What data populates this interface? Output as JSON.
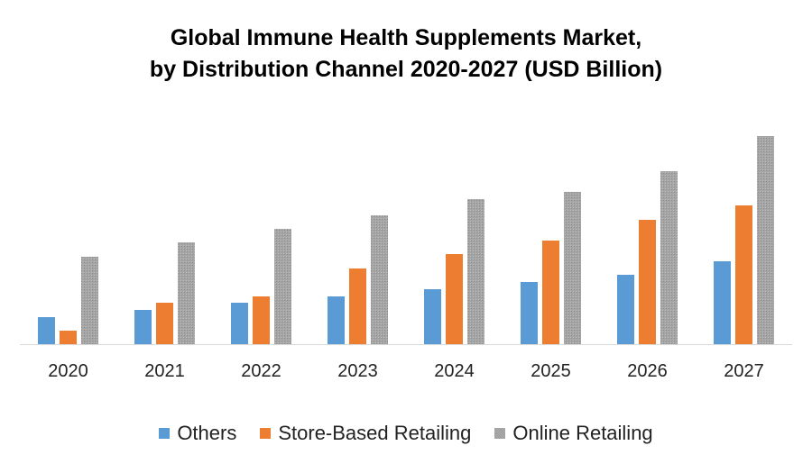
{
  "chart_data": {
    "type": "bar",
    "title": "Global Immune Health Supplements Market,",
    "subtitle": "by Distribution Channel 2020-2027 (USD Billion)",
    "categories": [
      "2020",
      "2021",
      "2022",
      "2023",
      "2024",
      "2025",
      "2026",
      "2027"
    ],
    "series": [
      {
        "name": "Others",
        "color": "#5B9BD5",
        "values": [
          30,
          38,
          46,
          53,
          61,
          69,
          77,
          92
        ]
      },
      {
        "name": "Store-Based Retailing",
        "color": "#ED7D31",
        "values": [
          15,
          46,
          53,
          84,
          100,
          115,
          138,
          154
        ]
      },
      {
        "name": "Online Retailing",
        "color": "#A5A5A5",
        "values": [
          97,
          113,
          128,
          143,
          161,
          169,
          192,
          231
        ]
      }
    ],
    "ylim": [
      0,
      240
    ],
    "y_axis_shown": false,
    "grid": false,
    "legend_position": "bottom"
  }
}
